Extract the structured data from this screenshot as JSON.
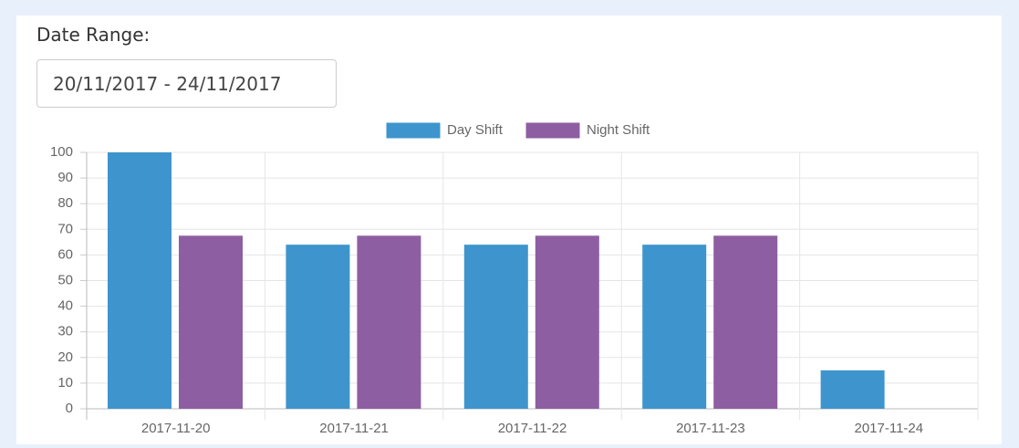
{
  "form": {
    "label": "Date Range:",
    "value": "20/11/2017 - 24/11/2017"
  },
  "chart_data": {
    "type": "bar",
    "categories": [
      "2017-11-20",
      "2017-11-21",
      "2017-11-22",
      "2017-11-23",
      "2017-11-24"
    ],
    "series": [
      {
        "name": "Day Shift",
        "color": "#3e95cd",
        "values": [
          100,
          64,
          64,
          64,
          15
        ]
      },
      {
        "name": "Night Shift",
        "color": "#8e5ea2",
        "values": [
          67.5,
          67.5,
          67.5,
          67.5,
          0
        ]
      }
    ],
    "ylim": [
      0,
      100
    ],
    "yticks": [
      0,
      10,
      20,
      30,
      40,
      50,
      60,
      70,
      80,
      90,
      100
    ],
    "grid": true,
    "legend": "top"
  }
}
